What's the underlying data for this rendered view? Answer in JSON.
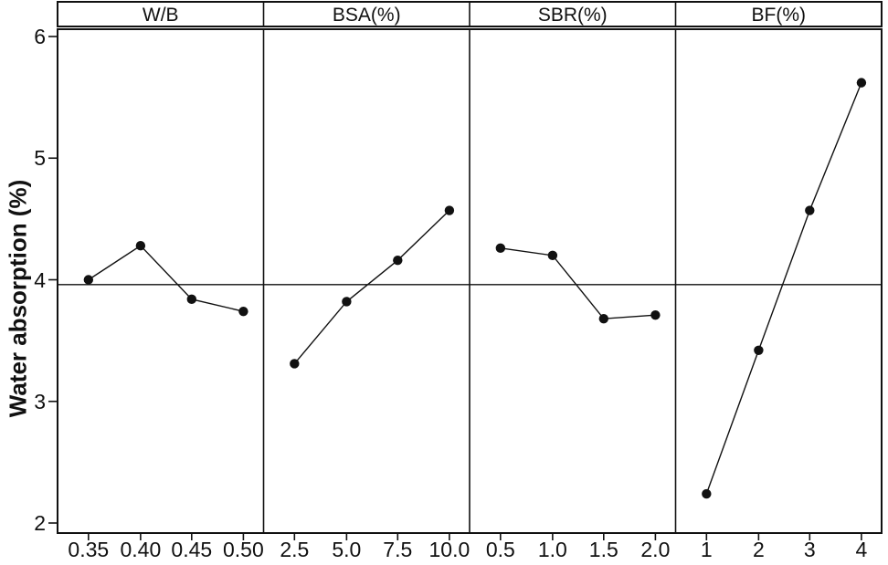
{
  "chart_data": {
    "type": "line",
    "description": "Main effects plot with four factor panels sharing one y-axis",
    "ylabel": "Water absorption (%)",
    "ylim": [
      2,
      6.15
    ],
    "grid": false,
    "y_ticks": [
      6,
      5,
      4,
      3,
      2
    ],
    "y_tick_labels": [
      "6",
      "5",
      "4",
      "3",
      "2"
    ],
    "reference_line": 3.96,
    "marker": "filled-circle",
    "line_color": "#111111",
    "panels": [
      {
        "label": "W/B",
        "x": [
          0.35,
          0.4,
          0.45,
          0.5
        ],
        "x_tick_labels": [
          "0.35",
          "0.40",
          "0.45",
          "0.50"
        ],
        "values": [
          4.0,
          4.28,
          3.84,
          3.74
        ]
      },
      {
        "label": "BSA(%)",
        "x": [
          2.5,
          5.0,
          7.5,
          10.0
        ],
        "x_tick_labels": [
          "2.5",
          "5.0",
          "7.5",
          "10.0"
        ],
        "values": [
          3.31,
          3.82,
          4.16,
          4.57
        ]
      },
      {
        "label": "SBR(%)",
        "x": [
          0.5,
          1.0,
          1.5,
          2.0
        ],
        "x_tick_labels": [
          "0.5",
          "1.0",
          "1.5",
          "2.0"
        ],
        "values": [
          4.26,
          4.2,
          3.68,
          3.71
        ]
      },
      {
        "label": "BF(%)",
        "x": [
          1,
          2,
          3,
          4
        ],
        "x_tick_labels": [
          "1",
          "2",
          "3",
          "4"
        ],
        "values": [
          2.24,
          3.42,
          4.57,
          5.62
        ]
      }
    ]
  }
}
